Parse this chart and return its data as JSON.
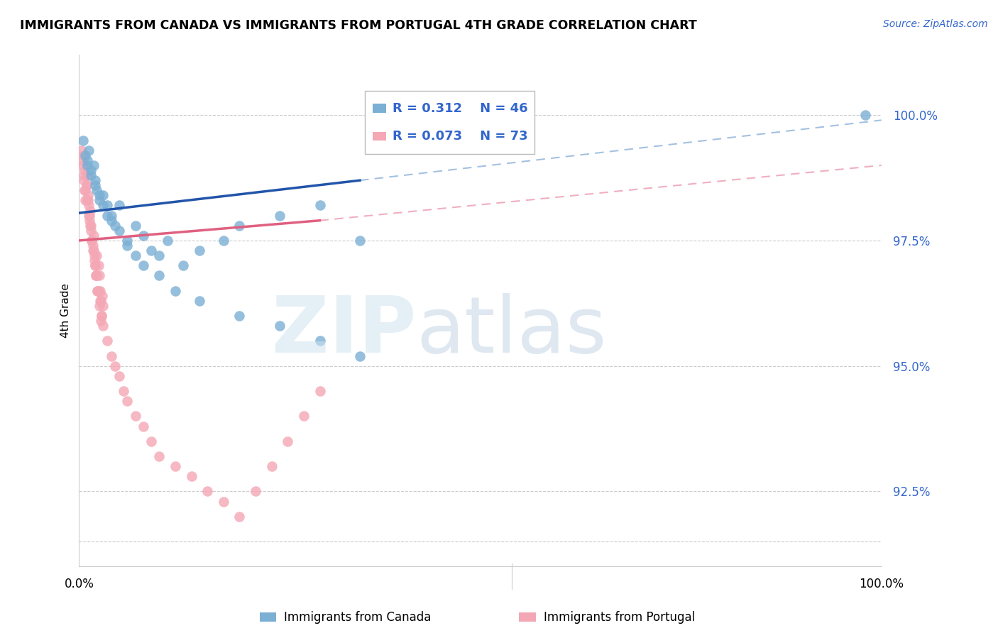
{
  "title": "IMMIGRANTS FROM CANADA VS IMMIGRANTS FROM PORTUGAL 4TH GRADE CORRELATION CHART",
  "source": "Source: ZipAtlas.com",
  "ylabel": "4th Grade",
  "xlim": [
    0.0,
    100.0
  ],
  "ylim": [
    91.0,
    101.2
  ],
  "ytick_vals": [
    92.5,
    95.0,
    97.5,
    100.0
  ],
  "ytick_labels": [
    "92.5%",
    "95.0%",
    "97.5%",
    "100.0%"
  ],
  "canada_color": "#7BAFD4",
  "portugal_color": "#F4A7B5",
  "canada_line_color": "#2255AA",
  "portugal_line_color": "#E06080",
  "canada_line_color_dash": "#6699CC",
  "portugal_line_color_dash": "#F4A7B5",
  "legend_canada_r": "R = 0.312",
  "legend_canada_n": "N = 46",
  "legend_portugal_r": "R = 0.073",
  "legend_portugal_n": "N = 73",
  "canada_x": [
    0.5,
    0.8,
    1.0,
    1.2,
    1.5,
    1.8,
    2.0,
    2.2,
    2.5,
    3.0,
    3.5,
    4.0,
    4.5,
    5.0,
    6.0,
    7.0,
    8.0,
    9.0,
    10.0,
    11.0,
    13.0,
    15.0,
    18.0,
    20.0,
    25.0,
    30.0,
    35.0,
    98.0,
    1.0,
    1.5,
    2.0,
    2.5,
    3.0,
    3.5,
    4.0,
    5.0,
    6.0,
    7.0,
    8.0,
    10.0,
    12.0,
    15.0,
    20.0,
    25.0,
    30.0,
    35.0
  ],
  "canada_y": [
    99.5,
    99.2,
    99.0,
    99.3,
    98.8,
    99.0,
    98.7,
    98.5,
    98.3,
    98.4,
    98.2,
    98.0,
    97.8,
    98.2,
    97.5,
    97.8,
    97.6,
    97.3,
    97.2,
    97.5,
    97.0,
    97.3,
    97.5,
    97.8,
    98.0,
    98.2,
    97.5,
    100.0,
    99.1,
    98.9,
    98.6,
    98.4,
    98.2,
    98.0,
    97.9,
    97.7,
    97.4,
    97.2,
    97.0,
    96.8,
    96.5,
    96.3,
    96.0,
    95.8,
    95.5,
    95.2
  ],
  "portugal_x": [
    0.3,
    0.5,
    0.6,
    0.7,
    0.8,
    0.9,
    1.0,
    1.1,
    1.2,
    1.3,
    1.4,
    1.5,
    1.6,
    1.7,
    1.8,
    1.9,
    2.0,
    2.1,
    2.2,
    2.3,
    2.4,
    2.5,
    2.6,
    2.7,
    2.8,
    2.9,
    3.0,
    0.4,
    0.6,
    0.8,
    1.0,
    1.2,
    1.4,
    1.6,
    1.8,
    2.0,
    2.2,
    2.4,
    2.6,
    2.8,
    3.0,
    3.5,
    4.0,
    4.5,
    5.0,
    5.5,
    6.0,
    7.0,
    8.0,
    9.0,
    10.0,
    12.0,
    14.0,
    16.0,
    18.0,
    20.0,
    22.0,
    24.0,
    26.0,
    28.0,
    30.0,
    0.5,
    0.7,
    0.9,
    1.1,
    1.3,
    1.5,
    1.7,
    1.9,
    2.1,
    2.3,
    2.5,
    2.7
  ],
  "portugal_y": [
    99.3,
    99.0,
    98.8,
    98.5,
    98.3,
    98.6,
    98.8,
    98.4,
    98.2,
    97.9,
    98.1,
    97.8,
    97.5,
    97.3,
    97.6,
    97.2,
    97.0,
    96.8,
    97.2,
    96.5,
    97.0,
    96.8,
    96.5,
    96.3,
    96.0,
    96.4,
    96.2,
    99.1,
    98.7,
    98.5,
    98.3,
    98.0,
    97.8,
    97.5,
    97.3,
    97.0,
    96.8,
    96.5,
    96.3,
    96.0,
    95.8,
    95.5,
    95.2,
    95.0,
    94.8,
    94.5,
    94.3,
    94.0,
    93.8,
    93.5,
    93.2,
    93.0,
    92.8,
    92.5,
    92.3,
    92.0,
    92.5,
    93.0,
    93.5,
    94.0,
    94.5,
    99.2,
    98.9,
    98.6,
    98.3,
    98.0,
    97.7,
    97.4,
    97.1,
    96.8,
    96.5,
    96.2,
    95.9
  ],
  "canada_trend_x0": 0.0,
  "canada_trend_y0": 98.05,
  "canada_trend_x1": 35.0,
  "canada_trend_y1": 98.7,
  "canada_dash_x0": 35.0,
  "canada_dash_y0": 98.7,
  "canada_dash_x1": 100.0,
  "canada_dash_y1": 99.9,
  "portugal_trend_x0": 0.0,
  "portugal_trend_y0": 97.5,
  "portugal_trend_x1": 30.0,
  "portugal_trend_y1": 97.9,
  "portugal_dash_x0": 30.0,
  "portugal_dash_y0": 97.9,
  "portugal_dash_x1": 100.0,
  "portugal_dash_y1": 99.0
}
